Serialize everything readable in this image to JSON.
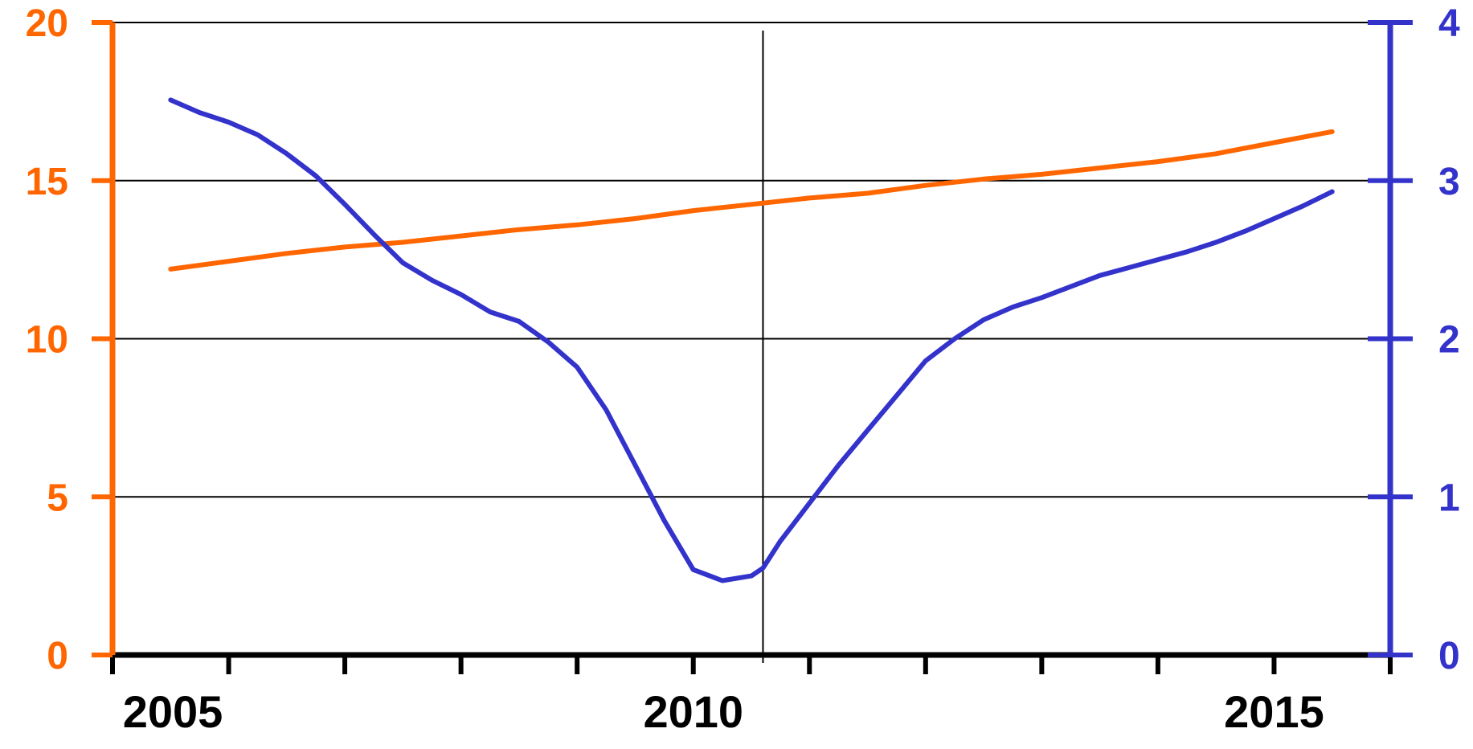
{
  "chart_data": {
    "type": "line",
    "title": "",
    "xlabel": "",
    "x_ticks": [
      "2005",
      "2010",
      "2015"
    ],
    "xlim": [
      2005,
      2016
    ],
    "y_left": {
      "ticks": [
        "0",
        "5",
        "10",
        "15",
        "20"
      ],
      "ylim": [
        0,
        20
      ],
      "color": "#ff6600"
    },
    "y_right": {
      "ticks": [
        "0",
        "1",
        "2",
        "3",
        "4"
      ],
      "ylim": [
        0,
        4
      ],
      "color": "#3333cc"
    },
    "grid": "horizontal",
    "marker_line_x": 2010.6,
    "series": [
      {
        "axis": "left",
        "color": "#ff6600",
        "x": [
          2005.5,
          2006,
          2006.5,
          2007,
          2007.5,
          2008,
          2008.5,
          2009,
          2009.5,
          2010,
          2010.5,
          2011,
          2011.5,
          2012,
          2012.5,
          2013,
          2013.5,
          2014,
          2014.5,
          2015,
          2015.5
        ],
        "values": [
          12.2,
          12.45,
          12.7,
          12.9,
          13.05,
          13.25,
          13.45,
          13.6,
          13.8,
          14.05,
          14.25,
          14.45,
          14.6,
          14.85,
          15.05,
          15.2,
          15.4,
          15.6,
          15.85,
          16.2,
          16.55
        ]
      },
      {
        "axis": "right",
        "color": "#3333cc",
        "x": [
          2005.5,
          2005.75,
          2006,
          2006.25,
          2006.5,
          2006.75,
          2007,
          2007.25,
          2007.5,
          2007.75,
          2008,
          2008.25,
          2008.5,
          2008.75,
          2009,
          2009.25,
          2009.5,
          2009.75,
          2010,
          2010.25,
          2010.5,
          2010.6,
          2010.75,
          2011,
          2011.25,
          2011.5,
          2011.75,
          2012,
          2012.25,
          2012.5,
          2012.75,
          2013,
          2013.25,
          2013.5,
          2013.75,
          2014,
          2014.25,
          2014.5,
          2014.75,
          2015,
          2015.25,
          2015.5
        ],
        "values": [
          3.51,
          3.43,
          3.37,
          3.29,
          3.17,
          3.03,
          2.85,
          2.66,
          2.48,
          2.37,
          2.28,
          2.17,
          2.11,
          1.98,
          1.82,
          1.55,
          1.2,
          0.85,
          0.54,
          0.47,
          0.5,
          0.55,
          0.72,
          0.96,
          1.2,
          1.42,
          1.64,
          1.86,
          2.0,
          2.12,
          2.2,
          2.26,
          2.33,
          2.4,
          2.45,
          2.5,
          2.55,
          2.61,
          2.68,
          2.76,
          2.84,
          2.93
        ]
      }
    ]
  }
}
